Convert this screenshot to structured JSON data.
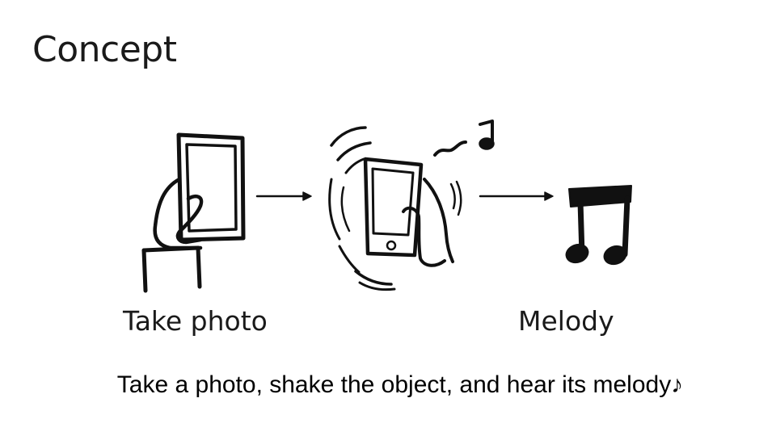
{
  "slide": {
    "title": "Concept",
    "caption": "Take a photo, shake the object, and hear its melody♪"
  },
  "steps": [
    {
      "label": "Take photo",
      "icon": "hand-holding-phone-icon"
    },
    {
      "label": "",
      "icon": "shaking-phone-icon"
    },
    {
      "label": "Melody",
      "icon": "music-notes-icon"
    }
  ],
  "colors": {
    "ink": "#111111",
    "background": "#ffffff"
  }
}
